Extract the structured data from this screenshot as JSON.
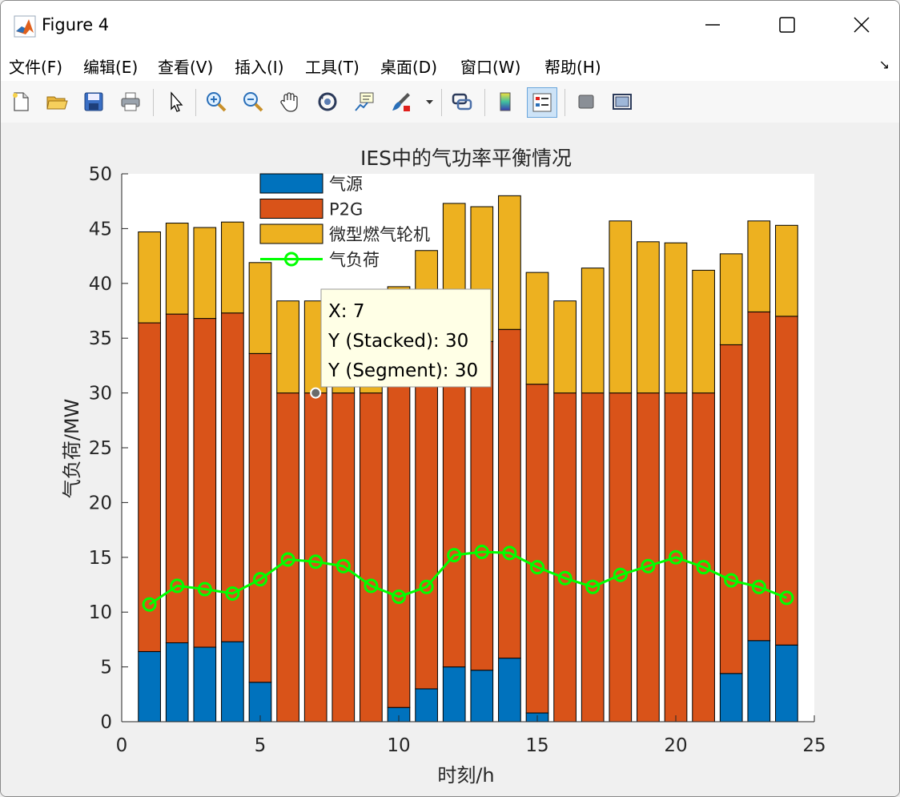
{
  "window": {
    "title": "Figure 4",
    "icons": {
      "app": "matlab-icon",
      "minimize": "minimize-icon",
      "maximize": "maximize-icon",
      "close": "close-icon"
    }
  },
  "menubar": {
    "items": [
      "文件(F)",
      "编辑(E)",
      "查看(V)",
      "插入(I)",
      "工具(T)",
      "桌面(D)",
      "窗口(W)",
      "帮助(H)"
    ],
    "overflow_icon": "dock-arrow-icon"
  },
  "toolbar": {
    "buttons": [
      "new-figure",
      "open-file",
      "save-figure",
      "print-figure",
      "edit-plot-pointer",
      "zoom-in",
      "zoom-out",
      "pan-hand",
      "rotate-3d",
      "data-cursor",
      "brush",
      "brush-menu",
      "link-plot",
      "insert-colorbar",
      "insert-legend",
      "hide-plot-tools",
      "show-plot-tools"
    ],
    "active": "insert-legend"
  },
  "chart_data": {
    "type": "bar",
    "stacked": true,
    "title": "IES中的气功率平衡情况",
    "xlabel": "时刻/h",
    "ylabel": "气负荷/MW",
    "xlim": [
      0,
      25
    ],
    "ylim": [
      0,
      50
    ],
    "xticks": [
      0,
      5,
      10,
      15,
      20,
      25
    ],
    "yticks": [
      0,
      5,
      10,
      15,
      20,
      25,
      30,
      35,
      40,
      45,
      50
    ],
    "grid": false,
    "legend_position": "top-left",
    "x": [
      1,
      2,
      3,
      4,
      5,
      6,
      7,
      8,
      9,
      10,
      11,
      12,
      13,
      14,
      15,
      16,
      17,
      18,
      19,
      20,
      21,
      22,
      23,
      24
    ],
    "series": [
      {
        "name": "气源",
        "color": "#0072BD",
        "values": [
          6.4,
          7.2,
          6.8,
          7.3,
          3.6,
          0,
          0,
          0,
          0,
          1.3,
          3.0,
          5.0,
          4.7,
          5.8,
          0.8,
          0,
          0,
          0,
          0,
          0,
          0,
          4.4,
          7.4,
          7.0
        ]
      },
      {
        "name": "P2G",
        "color": "#D95319",
        "values": [
          30.0,
          30.0,
          30.0,
          30.0,
          30.0,
          30.0,
          30.0,
          30.0,
          30.0,
          30.0,
          30.0,
          30.0,
          30.0,
          30.0,
          30.0,
          30.0,
          30.0,
          30.0,
          30.0,
          30.0,
          30.0,
          30.0,
          30.0,
          30.0
        ]
      },
      {
        "name": "微型燃气轮机",
        "color": "#EDB120",
        "values": [
          8.3,
          8.3,
          8.3,
          8.3,
          8.3,
          8.4,
          8.4,
          8.4,
          8.4,
          8.4,
          10.0,
          12.3,
          12.3,
          12.2,
          10.2,
          8.4,
          11.4,
          15.7,
          13.8,
          13.7,
          11.2,
          8.3,
          8.3,
          8.3
        ]
      },
      {
        "name": "气负荷",
        "color": "#00FF00",
        "type": "line",
        "marker": "circle",
        "values": [
          10.7,
          12.4,
          12.1,
          11.7,
          13.0,
          14.8,
          14.6,
          14.2,
          12.4,
          11.4,
          12.3,
          15.2,
          15.5,
          15.4,
          14.1,
          13.1,
          12.3,
          13.4,
          14.2,
          15.0,
          14.1,
          12.9,
          12.3,
          11.3
        ]
      }
    ],
    "datatip": {
      "x_line": "X: 7",
      "y_stacked_line": "Y (Stacked): 30",
      "y_segment_line": "Y (Segment): 30",
      "x": 7,
      "y": 30
    }
  }
}
